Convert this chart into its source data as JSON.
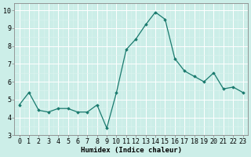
{
  "x": [
    0,
    1,
    2,
    3,
    4,
    5,
    6,
    7,
    8,
    9,
    10,
    11,
    12,
    13,
    14,
    15,
    16,
    17,
    18,
    19,
    20,
    21,
    22,
    23
  ],
  "y": [
    4.7,
    5.4,
    4.4,
    4.3,
    4.5,
    4.5,
    4.3,
    4.3,
    4.7,
    3.4,
    5.4,
    7.8,
    8.4,
    9.2,
    9.9,
    9.5,
    7.3,
    6.6,
    6.3,
    6.0,
    6.5,
    5.6,
    5.7,
    5.4
  ],
  "line_color": "#1a7a6e",
  "marker": "D",
  "marker_size": 1.8,
  "line_width": 0.9,
  "bg_color": "#cceee8",
  "grid_color_major": "#ffffff",
  "grid_color_minor": "#ddf5f0",
  "xlabel": "Humidex (Indice chaleur)",
  "xlim": [
    -0.5,
    23.5
  ],
  "ylim": [
    3.0,
    10.4
  ],
  "yticks": [
    3,
    4,
    5,
    6,
    7,
    8,
    9,
    10
  ],
  "xticks": [
    0,
    1,
    2,
    3,
    4,
    5,
    6,
    7,
    8,
    9,
    10,
    11,
    12,
    13,
    14,
    15,
    16,
    17,
    18,
    19,
    20,
    21,
    22,
    23
  ],
  "xlabel_fontsize": 6.5,
  "tick_fontsize": 6.0,
  "spine_color": "#888888"
}
